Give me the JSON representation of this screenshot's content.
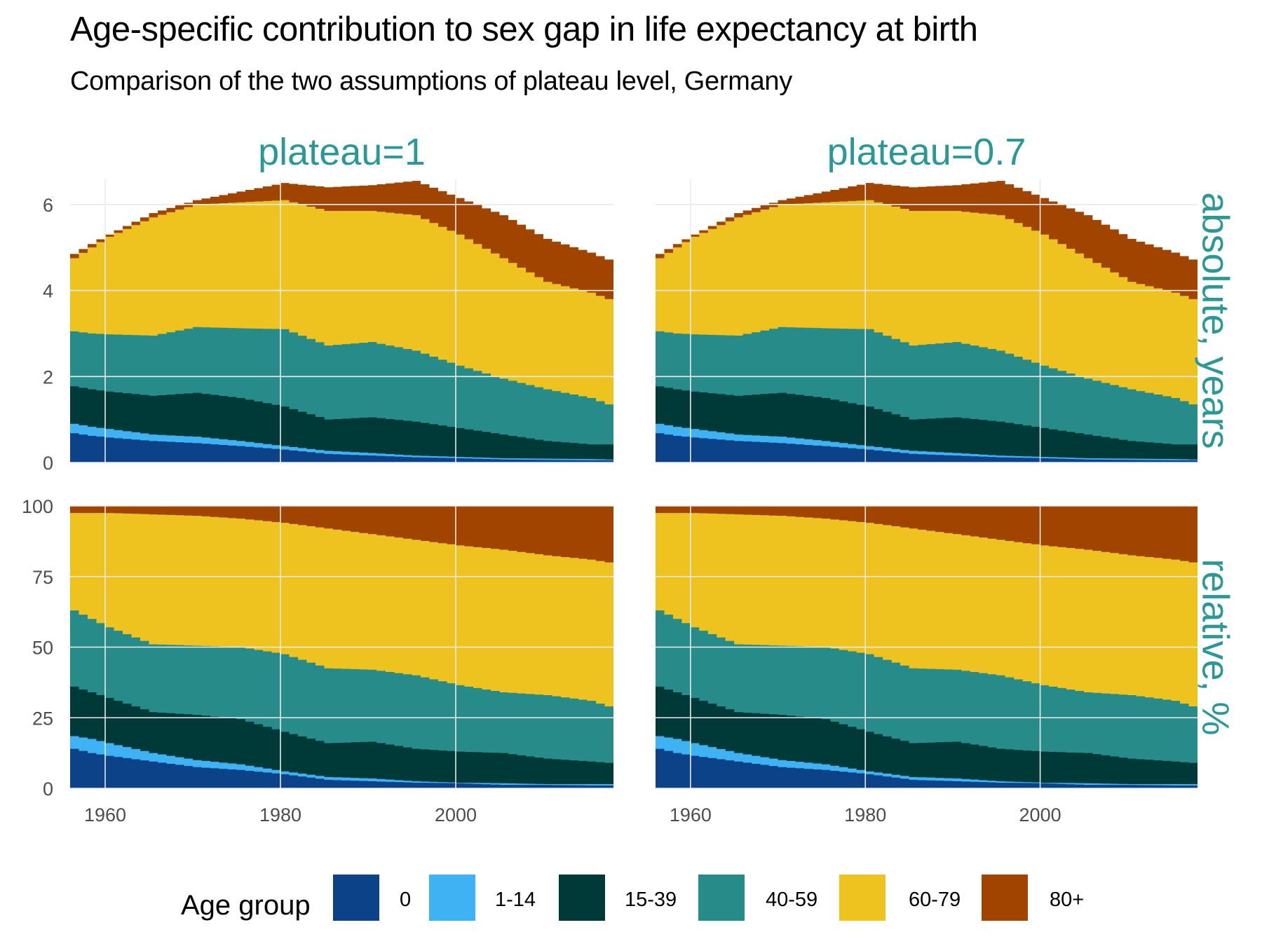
{
  "title": "Age-specific contribution to sex gap in life expectancy at birth",
  "subtitle": "Comparison of the two assumptions of plateau level, Germany",
  "legend": {
    "title": "Age group",
    "items": [
      {
        "label": "0",
        "color": "#0b4288"
      },
      {
        "label": "1-14",
        "color": "#3fb2f4"
      },
      {
        "label": "15-39",
        "color": "#003a38"
      },
      {
        "label": "40-59",
        "color": "#278c89"
      },
      {
        "label": "60-79",
        "color": "#eec320"
      },
      {
        "label": "80+",
        "color": "#a04400"
      }
    ]
  },
  "chart_data": {
    "type": "area",
    "style": "stacked step area, faceted 2x2",
    "columns": [
      "plateau=1",
      "plateau=0.7"
    ],
    "rows": [
      "absolute, years",
      "relative, %"
    ],
    "x_ticks": [
      "1960",
      "1980",
      "2000"
    ],
    "x_range": [
      1956,
      2017
    ],
    "y_ticks": {
      "absolute, years": [
        "0",
        "2",
        "4",
        "6"
      ],
      "relative, %": [
        "0",
        "25",
        "50",
        "75",
        "100"
      ]
    },
    "ylim": {
      "absolute, years": [
        0,
        6.6
      ],
      "relative, %": [
        0,
        100
      ]
    },
    "grid": true,
    "legend_position": "bottom",
    "series_names": [
      "0",
      "1-14",
      "15-39",
      "40-59",
      "60-79",
      "80+"
    ],
    "absolute_anchors": {
      "years": [
        1956,
        1958,
        1960,
        1965,
        1970,
        1975,
        1980,
        1985,
        1990,
        1995,
        2000,
        2005,
        2010,
        2015,
        2017
      ],
      "cumulative": [
        [
          0.68,
          0.62,
          0.58,
          0.5,
          0.45,
          0.38,
          0.3,
          0.2,
          0.16,
          0.12,
          0.1,
          0.07,
          0.06,
          0.05,
          0.05
        ],
        [
          0.9,
          0.83,
          0.78,
          0.65,
          0.6,
          0.5,
          0.38,
          0.27,
          0.22,
          0.16,
          0.13,
          0.1,
          0.09,
          0.08,
          0.07
        ],
        [
          1.77,
          1.7,
          1.65,
          1.55,
          1.62,
          1.5,
          1.3,
          1.0,
          1.05,
          0.95,
          0.8,
          0.65,
          0.5,
          0.42,
          0.42
        ],
        [
          3.05,
          3.0,
          2.98,
          2.95,
          3.15,
          3.12,
          3.1,
          2.72,
          2.8,
          2.6,
          2.25,
          1.95,
          1.7,
          1.5,
          1.35
        ],
        [
          4.75,
          5.0,
          5.25,
          5.7,
          6.0,
          6.05,
          6.1,
          5.85,
          5.85,
          5.75,
          5.3,
          4.75,
          4.2,
          3.95,
          3.8
        ],
        [
          4.85,
          5.08,
          5.3,
          5.8,
          6.1,
          6.3,
          6.5,
          6.4,
          6.45,
          6.55,
          6.15,
          5.75,
          5.2,
          4.88,
          4.72
        ]
      ]
    },
    "relative_anchors": {
      "years": [
        1956,
        1958,
        1960,
        1965,
        1970,
        1975,
        1980,
        1985,
        1990,
        1995,
        2000,
        2005,
        2010,
        2015,
        2017
      ],
      "cumulative": [
        [
          14,
          12.5,
          11.5,
          9.5,
          7.5,
          6.5,
          5,
          3,
          2.5,
          2,
          1.8,
          1.2,
          1.2,
          1,
          1
        ],
        [
          18.5,
          17.5,
          16,
          12.5,
          10,
          8.5,
          6,
          4,
          3.5,
          2.5,
          2,
          1.8,
          1.5,
          1.5,
          1.5
        ],
        [
          36,
          34,
          32,
          27,
          26,
          24.5,
          20,
          16,
          16.5,
          14,
          13,
          12.5,
          10.5,
          9.5,
          9
        ],
        [
          63,
          60,
          57,
          51,
          50.5,
          50,
          47.5,
          42.5,
          42,
          40,
          36.5,
          34,
          33,
          31,
          29
        ],
        [
          97.5,
          97.5,
          97.5,
          97,
          96.5,
          95.5,
          94,
          92,
          90,
          88,
          86,
          84.5,
          82.5,
          81,
          80
        ],
        [
          100,
          100,
          100,
          100,
          100,
          100,
          100,
          100,
          100,
          100,
          100,
          100,
          100,
          100,
          100
        ]
      ]
    }
  }
}
